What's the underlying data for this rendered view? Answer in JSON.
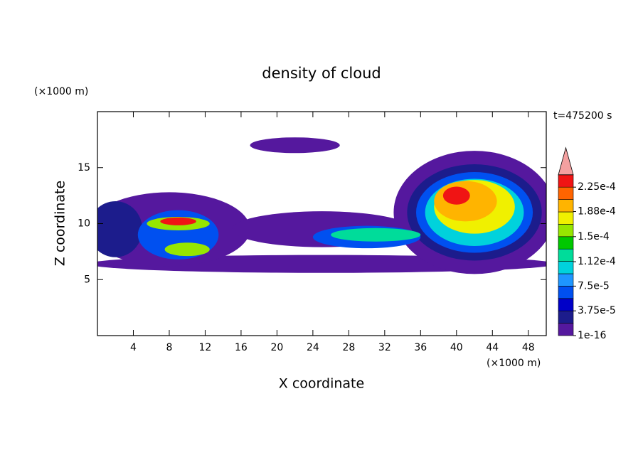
{
  "chart_data": {
    "type": "contour",
    "title": "density of cloud",
    "x_label": "X coordinate",
    "y_label": "Z coordinate",
    "x_unit": "(×1000 m)",
    "y_unit": "(×1000 m)",
    "time_label": "t=475200 s",
    "xlim": [
      0,
      50
    ],
    "ylim": [
      0,
      20
    ],
    "xticks": [
      4,
      8,
      12,
      16,
      20,
      24,
      28,
      32,
      36,
      40,
      44,
      48
    ],
    "yticks": [
      5,
      10,
      15
    ],
    "levels": [
      {
        "value": 1e-16,
        "label": "1e-16"
      },
      {
        "value": 3.75e-05,
        "label": "3.75e-5"
      },
      {
        "value": 7.5e-05,
        "label": "7.5e-5"
      },
      {
        "value": 0.000112,
        "label": "1.12e-4"
      },
      {
        "value": 0.00015,
        "label": "1.5e-4"
      },
      {
        "value": 0.000188,
        "label": "1.88e-4"
      },
      {
        "value": 0.000225,
        "label": "2.25e-4"
      }
    ],
    "colors": [
      "#55189e",
      "#1c1c8c",
      "#0000c8",
      "#0050f0",
      "#1e96ff",
      "#00d2dc",
      "#00dc9a",
      "#00c800",
      "#96e600",
      "#f0f000",
      "#ffb400",
      "#ff6400",
      "#f01414"
    ],
    "extend_color": "#f4a0a0",
    "cloud": [
      {
        "x": 25,
        "z": 6.4,
        "rx": 26,
        "rz": 0.8,
        "value": 1e-05
      },
      {
        "x": 8,
        "z": 9.5,
        "rx": 9,
        "rz": 3.3,
        "value": 1e-05
      },
      {
        "x": 25,
        "z": 9.5,
        "rx": 10,
        "rz": 1.6,
        "value": 1e-05
      },
      {
        "x": 42,
        "z": 11,
        "rx": 9,
        "rz": 5.5,
        "value": 1e-05
      },
      {
        "x": 22,
        "z": 17,
        "rx": 5,
        "rz": 0.7,
        "value": 1e-05
      },
      {
        "x": 2,
        "z": 9.5,
        "rx": 3,
        "rz": 2.5,
        "value": 3e-05
      },
      {
        "x": 42,
        "z": 11,
        "rx": 7.5,
        "rz": 4.3,
        "value": 3e-05
      },
      {
        "x": 30,
        "z": 8.8,
        "rx": 6,
        "rz": 1,
        "value": 6e-05
      },
      {
        "x": 42,
        "z": 11,
        "rx": 6.5,
        "rz": 3.6,
        "value": 6e-05
      },
      {
        "x": 9,
        "z": 9,
        "rx": 4.5,
        "rz": 2.2,
        "value": 6e-05
      },
      {
        "x": 42,
        "z": 11,
        "rx": 5.5,
        "rz": 3,
        "value": 0.00011
      },
      {
        "x": 31,
        "z": 9,
        "rx": 5,
        "rz": 0.6,
        "value": 0.00013
      },
      {
        "x": 9,
        "z": 10,
        "rx": 3.5,
        "rz": 0.6,
        "value": 0.00016
      },
      {
        "x": 10,
        "z": 7.7,
        "rx": 2.5,
        "rz": 0.6,
        "value": 0.00016
      },
      {
        "x": 42,
        "z": 11.5,
        "rx": 4.5,
        "rz": 2.4,
        "value": 0.00017
      },
      {
        "x": 41,
        "z": 12,
        "rx": 3.5,
        "rz": 1.8,
        "value": 0.0002
      },
      {
        "x": 9,
        "z": 10.2,
        "rx": 2,
        "rz": 0.35,
        "value": 0.00023
      },
      {
        "x": 40,
        "z": 12.5,
        "rx": 1.5,
        "rz": 0.8,
        "value": 0.00023
      }
    ]
  }
}
